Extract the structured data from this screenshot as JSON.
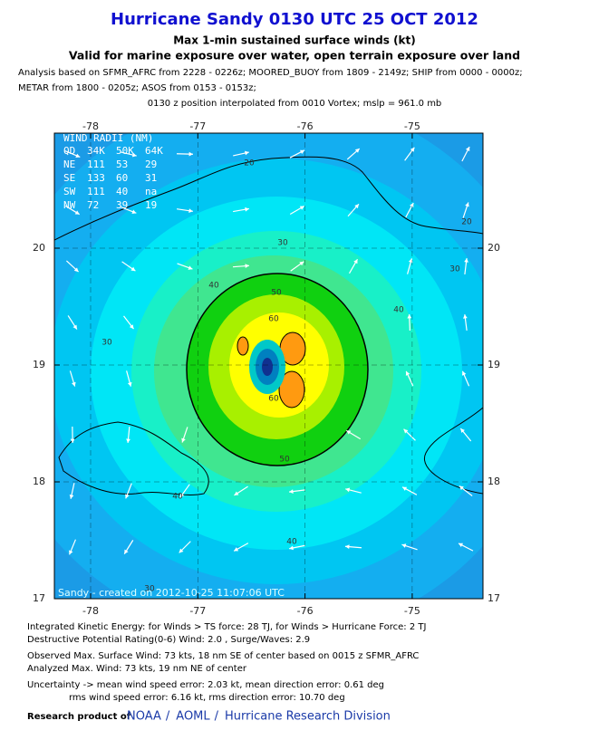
{
  "header": {
    "title": "Hurricane Sandy 0130 UTC 25 OCT 2012",
    "subtitle": "Max 1-min sustained surface winds (kt)",
    "validity": "Valid for marine exposure over water, open terrain exposure over land",
    "analysis": [
      "Analysis based on SFMR_AFRC from 2228 - 0226z; MOORED_BUOY from 1809 - 2149z; SHIP from 0000 - 0000z;",
      "METAR from 1800 - 0205z; ASOS from 0153 - 0153z;"
    ],
    "position": "0130 z position interpolated from 0010 Vortex; mslp = 961.0 mb"
  },
  "map": {
    "xticks": [
      -78,
      -77,
      -76,
      -75
    ],
    "yticks": [
      20,
      19,
      18,
      17
    ],
    "wind_radii": {
      "title": "WIND RADII (NM)",
      "columns": [
        "QD",
        "34K",
        "50K",
        "64K"
      ],
      "rows": [
        [
          "NE",
          "111",
          "53",
          "29"
        ],
        [
          "SE",
          "133",
          "60",
          "31"
        ],
        [
          "SW",
          "111",
          "40",
          "na"
        ],
        [
          "NW",
          "72",
          "39",
          "19"
        ]
      ]
    },
    "contour_labels": [
      "20",
      "20",
      "30",
      "30",
      "30",
      "40",
      "40",
      "40",
      "40",
      "50",
      "50",
      "60",
      "60",
      "30"
    ],
    "credit": "Sandy - created on 2012-10-25 11:07:06 UTC"
  },
  "footer": {
    "lines": [
      "Integrated Kinetic Energy: for Winds > TS force: 28 TJ, for Winds > Hurricane Force: 2 TJ",
      "Destructive Potential Rating(0-6)  Wind: 2.0 , Surge/Waves: 2.9",
      "Observed Max. Surface Wind: 73 kts, 18 nm SE of center based on 0015 z SFMR_AFRC",
      "Analyzed Max. Wind: 73 kts, 19 nm  NE of center",
      "Uncertainty -> mean wind speed error: 2.03 kt, mean direction error: 0.61 deg",
      "rms wind speed error: 6.16 kt, rms direction error: 10.70 deg"
    ],
    "research": {
      "prefix": "Research product of",
      "links": [
        "NOAA",
        "AOML",
        "Hurricane Research Division"
      ],
      "separator": "/"
    }
  }
}
